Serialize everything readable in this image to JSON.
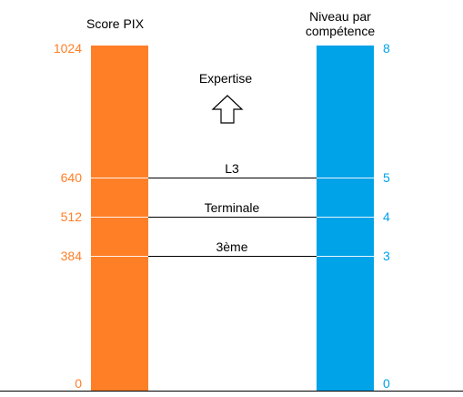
{
  "left_axis": {
    "title": "Score PIX",
    "ticks": [
      "1024",
      "640",
      "512",
      "384",
      "0"
    ],
    "color": "#FF7F27"
  },
  "right_axis": {
    "title_line1": "Niveau par",
    "title_line2": "compétence",
    "ticks": [
      "8",
      "5",
      "4",
      "3",
      "0"
    ],
    "color": "#00A2E8"
  },
  "levels": [
    {
      "label": "L3",
      "score": 640,
      "niveau": 5
    },
    {
      "label": "Terminale",
      "score": 512,
      "niveau": 4
    },
    {
      "label": "3ème",
      "score": 384,
      "niveau": 3
    }
  ],
  "top_label": "Expertise",
  "arrow_icon": "up-arrow-outline-icon"
}
